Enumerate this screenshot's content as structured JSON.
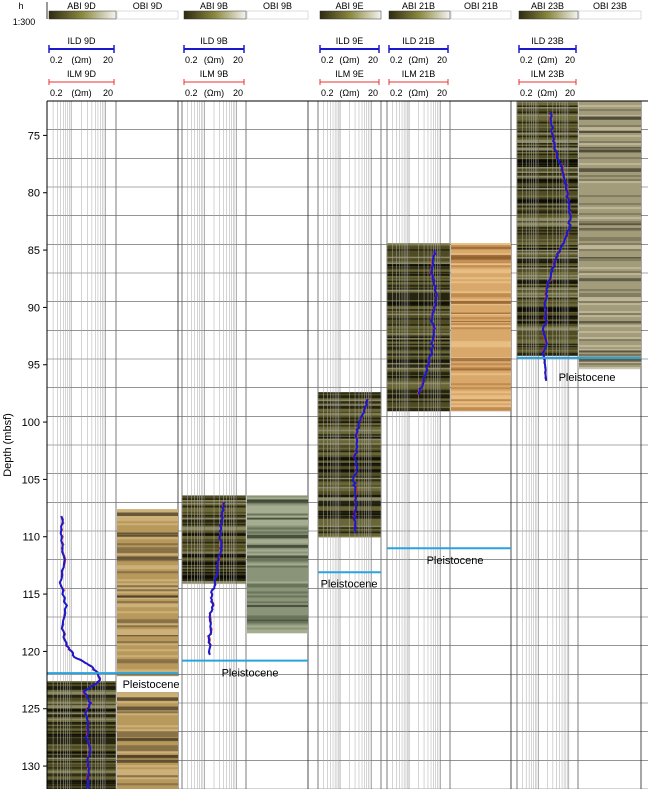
{
  "chart_data": {
    "type": "line",
    "ylabel": "Depth (mbsf)",
    "ylim": [
      72,
      132
    ],
    "y_ticks": [
      75,
      80,
      85,
      90,
      95,
      100,
      105,
      110,
      115,
      120,
      125,
      130
    ],
    "y_reversed": true,
    "x_scale": "log",
    "xlim": [
      0.2,
      20
    ],
    "corner": {
      "h_label": "h",
      "scale_label": "1:300"
    },
    "header_labels": {
      "range_min": "0.2",
      "unit": "(Ωm)",
      "range_max": "20"
    },
    "colors": {
      "ild": "#1a1acc",
      "ilm": "#e83030",
      "boundary": "#29a3e0"
    },
    "boundary_label": "Pleistocene",
    "holes": [
      {
        "abi_label": "ABI 9D",
        "obi_label": "OBI 9D",
        "ild_label": "ILD 9D",
        "ilm_label": "ILM 9D",
        "image_top": 122.6,
        "image_bottom": 132,
        "obi_top": 107.6,
        "obi_bottom": 132,
        "log_top": 108.2,
        "boundary_depth": 121.9,
        "ild": {
          "depth": [
            108.2,
            110,
            112,
            114,
            116,
            118,
            119.5,
            120.5,
            121.2,
            121.8,
            122.5,
            123.5,
            124.5,
            125.5,
            126.5,
            127.5,
            128.5,
            129.5,
            130.5,
            131.5,
            132
          ],
          "value": [
            0.55,
            0.5,
            0.62,
            0.48,
            0.7,
            0.55,
            0.75,
            1.3,
            3.5,
            5.5,
            7,
            2.5,
            3.5,
            2.6,
            3.2,
            2.8,
            3.6,
            3.0,
            3.3,
            3.0,
            3.1
          ]
        }
      },
      {
        "abi_label": "ABI 9B",
        "obi_label": "OBI 9B",
        "ild_label": "ILD 9B",
        "ilm_label": "ILM 9B",
        "image_top": 106.4,
        "image_bottom": 114.0,
        "obi_top": 106.4,
        "obi_bottom": 118.4,
        "log_top": 107,
        "boundary_depth": 120.8,
        "ild": {
          "depth": [
            107,
            108,
            109,
            110,
            111,
            112,
            113,
            114,
            115,
            116,
            117,
            118,
            119,
            120.3
          ],
          "value": [
            4.0,
            3.6,
            3.3,
            3.0,
            3.4,
            2.8,
            2.5,
            2.2,
            1.7,
            1.8,
            1.5,
            1.6,
            1.4,
            1.5
          ]
        }
      },
      {
        "abi_label": "ABI 9E",
        "obi_label": "",
        "ild_label": "ILD 9E",
        "ilm_label": "ILM 9E",
        "image_top": 97.4,
        "image_bottom": 110.0,
        "obi_top": null,
        "obi_bottom": null,
        "log_top": 98,
        "boundary_depth": 113.1,
        "ild": {
          "depth": [
            98,
            99,
            100,
            101,
            102,
            103,
            104,
            105,
            106,
            107,
            108,
            109,
            109.7
          ],
          "value": [
            7.5,
            6.0,
            4.2,
            3.2,
            3.6,
            3.0,
            3.4,
            2.8,
            3.0,
            3.3,
            2.9,
            3.1,
            3.0
          ]
        }
      },
      {
        "abi_label": "ABI 21B",
        "obi_label": "OBI 21B",
        "ild_label": "ILD 21B",
        "ilm_label": "ILM 21B",
        "image_top": 84.4,
        "image_bottom": 99.0,
        "obi_top": 84.4,
        "obi_bottom": 99.0,
        "log_top": 85,
        "boundary_depth": 111.0,
        "ild": {
          "depth": [
            85,
            86,
            87,
            88,
            89,
            90,
            91,
            92,
            93,
            94,
            95,
            96,
            97,
            97.6
          ],
          "value": [
            6.5,
            6.0,
            5.0,
            6.5,
            7.5,
            6.2,
            5.2,
            6.3,
            5.6,
            5.1,
            4.0,
            3.2,
            2.4,
            2.0
          ]
        }
      },
      {
        "abi_label": "ABI 23B",
        "obi_label": "OBI 23B",
        "ild_label": "ILD 23B",
        "ilm_label": "ILM 23B",
        "image_top": 72.0,
        "image_bottom": 94.2,
        "obi_top": 72.0,
        "obi_bottom": 95.2,
        "log_top": 73,
        "boundary_depth": 94.4,
        "ild": {
          "depth": [
            73,
            74,
            75,
            76,
            77,
            78,
            79,
            80,
            81,
            82,
            83,
            84,
            85,
            86,
            87,
            88,
            89,
            90,
            91,
            92,
            93,
            94,
            95,
            96.4
          ],
          "value": [
            2.5,
            2.7,
            3.0,
            3.3,
            4.5,
            6.0,
            7.5,
            8.5,
            10.0,
            11.0,
            10.5,
            8.0,
            5.0,
            3.5,
            2.6,
            2.0,
            1.8,
            1.6,
            1.8,
            1.5,
            1.9,
            1.4,
            1.6,
            1.8
          ]
        }
      }
    ]
  }
}
